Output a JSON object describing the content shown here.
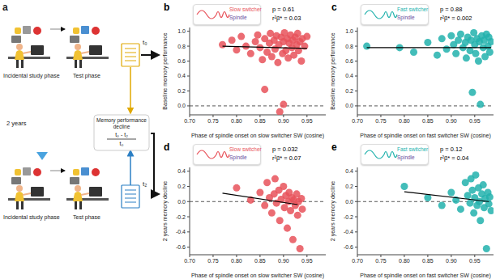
{
  "panel_a": {
    "label": "a",
    "rows": [
      {
        "study_phase": "Incidental study phase",
        "test_phase": "Test phase",
        "time": "t₀"
      },
      {
        "study_phase": "Incidental study phase",
        "test_phase": "Test phase",
        "time": "t₂"
      }
    ],
    "interval": "2 years",
    "decline_title": "Memory performance decline",
    "formula_numerator": "t₀ - t₂",
    "formula_denominator": "t₀"
  },
  "chart_data": [
    {
      "type": "scatter",
      "panel_label": "b",
      "inset": {
        "title": "Slow switcher",
        "subtitle": "Spindle"
      },
      "annotations": [
        "p = 0.61",
        "r²β* = 0.03"
      ],
      "xlabel": "Phase of spindle onset on slow switcher SW (cosine)",
      "ylabel": "Baseline memory performance",
      "xlim": [
        0.7,
        0.99
      ],
      "xticks": [
        {
          "value": 0.7,
          "label": "0.70"
        },
        0.75,
        {
          "value": 0.8,
          "label": "0.80"
        },
        0.85,
        {
          "value": 0.9,
          "label": "0.90"
        },
        0.95
      ],
      "ylim": [
        -0.12,
        1.05
      ],
      "yticks": [
        {
          "value": 0,
          "label": "0.0"
        },
        0.2,
        0.4,
        0.6,
        0.8,
        {
          "value": 1,
          "label": "1.0"
        }
      ],
      "reference_y": 0,
      "series": [
        {
          "color": "#e8525a",
          "x": [
            0.77,
            0.79,
            0.8,
            0.81,
            0.82,
            0.83,
            0.84,
            0.845,
            0.85,
            0.855,
            0.86,
            0.865,
            0.87,
            0.872,
            0.875,
            0.88,
            0.882,
            0.885,
            0.888,
            0.89,
            0.892,
            0.895,
            0.898,
            0.9,
            0.902,
            0.905,
            0.908,
            0.91,
            0.912,
            0.915,
            0.918,
            0.92,
            0.922,
            0.925,
            0.928,
            0.93,
            0.932,
            0.935,
            0.938,
            0.94,
            0.945,
            0.95,
            0.86,
            0.9
          ],
          "y": [
            0.82,
            0.88,
            0.75,
            0.93,
            0.8,
            0.7,
            0.86,
            0.95,
            0.78,
            0.62,
            0.9,
            0.72,
            0.84,
            0.97,
            0.66,
            0.88,
            0.76,
            0.94,
            0.58,
            0.82,
            -0.08,
            0.92,
            0.7,
            0.86,
            0.98,
            0.74,
            0.9,
            0.64,
            0.84,
            0.95,
            0.78,
            0.88,
            0.68,
            0.92,
            0.82,
            0.97,
            0.74,
            0.86,
            0.6,
            0.9,
            0.8,
            0.93,
            0.22,
            0.02
          ]
        }
      ],
      "fit": {
        "x": [
          0.77,
          0.95
        ],
        "y": [
          0.8,
          0.77
        ]
      }
    },
    {
      "type": "scatter",
      "panel_label": "c",
      "inset": {
        "title": "Fast switcher",
        "subtitle": "Spindle"
      },
      "annotations": [
        "p = 0.88",
        "r²β* = 0.002"
      ],
      "xlabel": "Phase of spindle onset on fast switcher SW (cosine)",
      "ylabel": "Baseline memory performance",
      "xlim": [
        0.7,
        0.99
      ],
      "xticks": [
        {
          "value": 0.7,
          "label": "0.70"
        },
        0.75,
        {
          "value": 0.8,
          "label": "0.80"
        },
        0.85,
        {
          "value": 0.9,
          "label": "0.90"
        },
        0.95
      ],
      "ylim": [
        -0.12,
        1.05
      ],
      "yticks": [
        {
          "value": 0,
          "label": "0.0"
        },
        0.2,
        0.4,
        0.6,
        0.8,
        {
          "value": 1,
          "label": "1.0"
        }
      ],
      "reference_y": 0,
      "series": [
        {
          "color": "#22b2ad",
          "x": [
            0.72,
            0.79,
            0.82,
            0.85,
            0.87,
            0.88,
            0.89,
            0.9,
            0.905,
            0.91,
            0.915,
            0.92,
            0.925,
            0.93,
            0.932,
            0.935,
            0.94,
            0.942,
            0.945,
            0.948,
            0.95,
            0.952,
            0.955,
            0.958,
            0.96,
            0.962,
            0.965,
            0.968,
            0.97,
            0.972,
            0.975,
            0.978,
            0.98,
            0.982,
            0.985
          ],
          "y": [
            0.8,
            0.78,
            0.72,
            0.85,
            0.68,
            0.9,
            0.76,
            0.94,
            0.82,
            0.7,
            0.88,
            0.96,
            0.78,
            0.85,
            0.64,
            0.92,
            0.74,
            0.88,
            0.18,
            0.98,
            0.82,
            0.7,
            0.9,
            0.6,
            0.86,
            0.02,
            0.94,
            0.78,
            0.88,
            0.66,
            0.96,
            0.8,
            0.92,
            0.72,
            0.86
          ]
        }
      ],
      "fit": {
        "x": [
          0.72,
          0.985
        ],
        "y": [
          0.78,
          0.78
        ]
      }
    },
    {
      "type": "scatter",
      "panel_label": "d",
      "inset": {
        "title": "Slow switcher",
        "subtitle": "Spindle"
      },
      "annotations": [
        "p = 0.032",
        "r²β* = 0.07"
      ],
      "xlabel": "Phase of spindle onset on slow switcher SW (cosine)",
      "ylabel": "2 years memory decline",
      "xlim": [
        0.7,
        0.99
      ],
      "xticks": [
        {
          "value": 0.7,
          "label": "0.70"
        },
        0.75,
        {
          "value": 0.8,
          "label": "0.80"
        },
        0.85,
        {
          "value": 0.9,
          "label": "0.90"
        },
        0.95
      ],
      "ylim": [
        -0.7,
        0.45
      ],
      "yticks": [
        -0.6,
        -0.4,
        -0.2,
        {
          "value": 0,
          "label": "0.0"
        },
        0.2,
        0.4
      ],
      "reference_y": 0,
      "series": [
        {
          "color": "#e8525a",
          "x": [
            0.8,
            0.83,
            0.85,
            0.86,
            0.865,
            0.87,
            0.875,
            0.88,
            0.882,
            0.885,
            0.89,
            0.892,
            0.895,
            0.9,
            0.902,
            0.905,
            0.908,
            0.91,
            0.912,
            0.915,
            0.918,
            0.92,
            0.922,
            0.925,
            0.928,
            0.93,
            0.932,
            0.935,
            0.938,
            0.94
          ],
          "y": [
            0.18,
            0.02,
            0.12,
            -0.05,
            0.25,
            0.05,
            -0.15,
            0.1,
            0.3,
            -0.02,
            0.15,
            -0.25,
            0.03,
            0.2,
            -0.08,
            0.08,
            -0.35,
            0,
            0.12,
            -0.12,
            0.05,
            -0.5,
            0.02,
            -0.05,
            0.1,
            -0.18,
            0,
            -0.62,
            0.04,
            -0.1
          ]
        }
      ],
      "fit": {
        "x": [
          0.77,
          0.93
        ],
        "y": [
          0.11,
          -0.04
        ]
      }
    },
    {
      "type": "scatter",
      "panel_label": "e",
      "inset": {
        "title": "Fast switcher",
        "subtitle": "Spindle"
      },
      "annotations": [
        "p = 0.12",
        "r²β* = 0.04"
      ],
      "xlabel": "Phase of spindle onset on fast switcher SW (cosine)",
      "ylabel": "2 years memory decline",
      "xlim": [
        0.7,
        0.99
      ],
      "xticks": [
        {
          "value": 0.7,
          "label": "0.70"
        },
        0.75,
        {
          "value": 0.8,
          "label": "0.80"
        },
        0.85,
        {
          "value": 0.9,
          "label": "0.90"
        },
        0.95
      ],
      "ylim": [
        -0.7,
        0.45
      ],
      "yticks": [
        -0.6,
        -0.4,
        -0.2,
        {
          "value": 0,
          "label": "0.0"
        },
        0.2,
        0.4
      ],
      "reference_y": 0,
      "series": [
        {
          "color": "#22b2ad",
          "x": [
            0.8,
            0.85,
            0.88,
            0.9,
            0.91,
            0.92,
            0.93,
            0.935,
            0.94,
            0.942,
            0.945,
            0.948,
            0.95,
            0.952,
            0.955,
            0.958,
            0.96,
            0.962,
            0.965,
            0.968,
            0.97,
            0.972,
            0.975,
            0.978,
            0.98,
            0.982,
            0.985
          ],
          "y": [
            0.2,
            0.05,
            -0.05,
            0.12,
            0.02,
            -0.1,
            0.25,
            0.08,
            -0.02,
            0.3,
            0.15,
            -0.15,
            0.05,
            0.35,
            -0.05,
            0.18,
            0,
            -0.25,
            0.1,
            0.22,
            -0.08,
            0.04,
            -0.62,
            0.12,
            -0.03,
            0.06,
            -0.12
          ]
        }
      ],
      "fit": {
        "x": [
          0.8,
          0.98
        ],
        "y": [
          0.13,
          0
        ]
      }
    }
  ]
}
